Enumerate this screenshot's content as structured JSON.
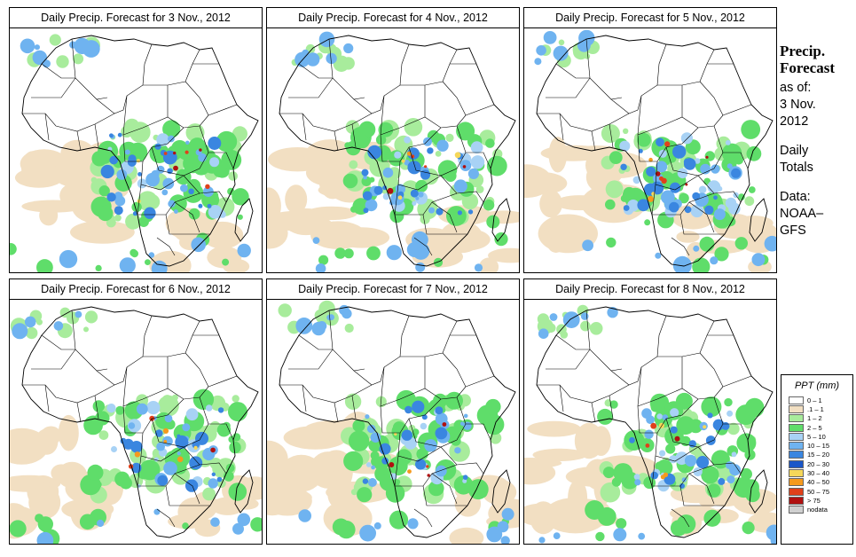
{
  "panels": [
    {
      "title": "Daily Precip. Forecast for  3 Nov., 2012",
      "intensity": 1.0
    },
    {
      "title": "Daily Precip. Forecast for  4 Nov., 2012",
      "intensity": 0.95
    },
    {
      "title": "Daily Precip. Forecast for  5 Nov., 2012",
      "intensity": 1.05
    },
    {
      "title": "Daily Precip. Forecast for  6 Nov., 2012",
      "intensity": 0.9
    },
    {
      "title": "Daily Precip. Forecast for  7 Nov., 2012",
      "intensity": 0.75
    },
    {
      "title": "Daily Precip. Forecast for  8 Nov., 2012",
      "intensity": 0.8
    }
  ],
  "side": {
    "title_line1": "Precip.",
    "title_line2": "Forecast",
    "asof": "as of:",
    "date_line1": "3 Nov.",
    "date_line2": "2012",
    "daily1": "Daily",
    "daily2": "Totals",
    "data1": "Data:",
    "data2": "NOAA–",
    "data3": "GFS"
  },
  "legend": {
    "title": "PPT (mm)",
    "items": [
      {
        "label": "0 – 1",
        "color": "#ffffff"
      },
      {
        "label": ".1 – 1",
        "color": "#f2dfc2"
      },
      {
        "label": "1 – 2",
        "color": "#a8ec9c"
      },
      {
        "label": "2 – 5",
        "color": "#5fdd6a"
      },
      {
        "label": "5 – 10",
        "color": "#a8d2f5"
      },
      {
        "label": "10 – 15",
        "color": "#6fb3f0"
      },
      {
        "label": "15 – 20",
        "color": "#3a86e0"
      },
      {
        "label": "20 – 30",
        "color": "#1a56c8"
      },
      {
        "label": "30 – 40",
        "color": "#f5d75a"
      },
      {
        "label": "40 – 50",
        "color": "#f59a1e"
      },
      {
        "label": "50 – 75",
        "color": "#e0401a"
      },
      {
        "label": "> 75",
        "color": "#b01010"
      },
      {
        "label": "nodata",
        "color": "#d0d0d0"
      }
    ]
  }
}
